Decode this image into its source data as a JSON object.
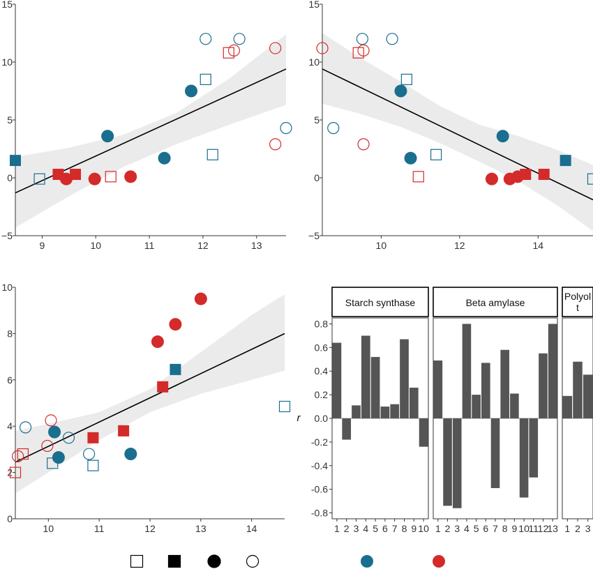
{
  "colors": {
    "blue": "#1a6e8e",
    "red": "#d42a2a",
    "band": "#ebebeb",
    "line": "#000000",
    "bar": "#555555"
  },
  "chart_data": [
    {
      "type": "scatter",
      "panel": "top-left",
      "xlim": [
        8.5,
        13.55
      ],
      "ylim": [
        -5,
        15
      ],
      "xticks": [
        9,
        10,
        11,
        12,
        13
      ],
      "yticks": [
        -5,
        0,
        5,
        10,
        15
      ],
      "fit": {
        "x": [
          8.5,
          13.55
        ],
        "y": [
          -1.3,
          9.4
        ]
      },
      "band": {
        "x": [
          8.5,
          9.5,
          10.5,
          11.5,
          12.5,
          13.55
        ],
        "lower": [
          -4.3,
          -1.6,
          0.9,
          2.9,
          4.6,
          6.3
        ],
        "upper": [
          1.8,
          2.6,
          3.7,
          5.6,
          8.6,
          12.4
        ]
      },
      "points": [
        {
          "x": 8.5,
          "y": 1.5,
          "shape": "square",
          "filled": true,
          "color": "blue"
        },
        {
          "x": 8.95,
          "y": -0.1,
          "shape": "square",
          "filled": false,
          "color": "blue"
        },
        {
          "x": 9.3,
          "y": 0.3,
          "shape": "square",
          "filled": true,
          "color": "red"
        },
        {
          "x": 9.45,
          "y": -0.1,
          "shape": "circle",
          "filled": true,
          "color": "red"
        },
        {
          "x": 9.62,
          "y": 0.3,
          "shape": "square",
          "filled": true,
          "color": "red"
        },
        {
          "x": 9.98,
          "y": -0.1,
          "shape": "circle",
          "filled": true,
          "color": "red"
        },
        {
          "x": 10.22,
          "y": 3.6,
          "shape": "circle",
          "filled": true,
          "color": "blue"
        },
        {
          "x": 10.28,
          "y": 0.1,
          "shape": "square",
          "filled": false,
          "color": "red"
        },
        {
          "x": 10.65,
          "y": 0.1,
          "shape": "circle",
          "filled": true,
          "color": "red"
        },
        {
          "x": 11.28,
          "y": 1.7,
          "shape": "circle",
          "filled": true,
          "color": "blue"
        },
        {
          "x": 11.78,
          "y": 7.5,
          "shape": "circle",
          "filled": true,
          "color": "blue"
        },
        {
          "x": 12.05,
          "y": 8.5,
          "shape": "square",
          "filled": false,
          "color": "blue"
        },
        {
          "x": 12.05,
          "y": 12.0,
          "shape": "circle",
          "filled": false,
          "color": "blue"
        },
        {
          "x": 12.18,
          "y": 2.0,
          "shape": "square",
          "filled": false,
          "color": "blue"
        },
        {
          "x": 12.48,
          "y": 10.8,
          "shape": "square",
          "filled": false,
          "color": "red"
        },
        {
          "x": 12.58,
          "y": 11.0,
          "shape": "circle",
          "filled": false,
          "color": "red"
        },
        {
          "x": 12.68,
          "y": 12.0,
          "shape": "circle",
          "filled": false,
          "color": "blue"
        },
        {
          "x": 13.35,
          "y": 11.2,
          "shape": "circle",
          "filled": false,
          "color": "red"
        },
        {
          "x": 13.35,
          "y": 2.9,
          "shape": "circle",
          "filled": false,
          "color": "red"
        },
        {
          "x": 13.55,
          "y": 4.3,
          "shape": "circle",
          "filled": false,
          "color": "blue"
        }
      ]
    },
    {
      "type": "scatter",
      "panel": "top-right",
      "xlim": [
        8.5,
        15.4
      ],
      "ylim": [
        -5,
        15
      ],
      "xticks": [
        10,
        12,
        14
      ],
      "yticks": [
        -5,
        0,
        5,
        10,
        15
      ],
      "fit": {
        "x": [
          8.5,
          15.4
        ],
        "y": [
          9.4,
          -1.9
        ]
      },
      "band": {
        "x": [
          8.5,
          9.5,
          10.5,
          11.5,
          12.5,
          13.5,
          14.5,
          15.4
        ],
        "lower": [
          6.4,
          5.5,
          4.4,
          3.0,
          1.4,
          -0.3,
          -2.4,
          -4.6
        ],
        "upper": [
          12.5,
          10.3,
          8.3,
          6.2,
          4.6,
          3.6,
          2.4,
          1.1
        ]
      },
      "points": [
        {
          "x": 8.5,
          "y": 11.2,
          "shape": "circle",
          "filled": false,
          "color": "red"
        },
        {
          "x": 8.78,
          "y": 4.3,
          "shape": "circle",
          "filled": false,
          "color": "blue"
        },
        {
          "x": 9.42,
          "y": 10.8,
          "shape": "square",
          "filled": false,
          "color": "red"
        },
        {
          "x": 9.52,
          "y": 12.0,
          "shape": "circle",
          "filled": false,
          "color": "blue"
        },
        {
          "x": 9.55,
          "y": 11.0,
          "shape": "circle",
          "filled": false,
          "color": "red"
        },
        {
          "x": 9.55,
          "y": 2.9,
          "shape": "circle",
          "filled": false,
          "color": "red"
        },
        {
          "x": 10.28,
          "y": 12.0,
          "shape": "circle",
          "filled": false,
          "color": "blue"
        },
        {
          "x": 10.5,
          "y": 7.5,
          "shape": "circle",
          "filled": true,
          "color": "blue"
        },
        {
          "x": 10.65,
          "y": 8.5,
          "shape": "square",
          "filled": false,
          "color": "blue"
        },
        {
          "x": 10.75,
          "y": 1.7,
          "shape": "circle",
          "filled": true,
          "color": "blue"
        },
        {
          "x": 10.95,
          "y": 0.1,
          "shape": "square",
          "filled": false,
          "color": "red"
        },
        {
          "x": 11.4,
          "y": 2.0,
          "shape": "square",
          "filled": false,
          "color": "blue"
        },
        {
          "x": 12.82,
          "y": -0.1,
          "shape": "circle",
          "filled": true,
          "color": "red"
        },
        {
          "x": 13.1,
          "y": 3.6,
          "shape": "circle",
          "filled": true,
          "color": "blue"
        },
        {
          "x": 13.28,
          "y": -0.1,
          "shape": "circle",
          "filled": true,
          "color": "red"
        },
        {
          "x": 13.48,
          "y": 0.1,
          "shape": "circle",
          "filled": true,
          "color": "red"
        },
        {
          "x": 13.68,
          "y": 0.3,
          "shape": "square",
          "filled": true,
          "color": "red"
        },
        {
          "x": 14.15,
          "y": 0.3,
          "shape": "square",
          "filled": true,
          "color": "red"
        },
        {
          "x": 14.7,
          "y": 1.5,
          "shape": "square",
          "filled": true,
          "color": "blue"
        },
        {
          "x": 15.4,
          "y": -0.1,
          "shape": "square",
          "filled": false,
          "color": "blue"
        }
      ]
    },
    {
      "type": "scatter",
      "panel": "bottom-left",
      "xlim": [
        9.35,
        14.65
      ],
      "ylim": [
        0,
        10
      ],
      "xticks": [
        10,
        11,
        12,
        13,
        14
      ],
      "yticks": [
        0,
        2,
        4,
        6,
        8,
        10
      ],
      "fit": {
        "x": [
          9.35,
          14.65
        ],
        "y": [
          2.45,
          8.0
        ]
      },
      "band": {
        "x": [
          9.35,
          10.0,
          11.0,
          12.0,
          13.0,
          14.0,
          14.65
        ],
        "lower": [
          1.1,
          2.0,
          3.4,
          4.6,
          5.4,
          6.0,
          6.4
        ],
        "upper": [
          3.8,
          4.1,
          4.6,
          5.6,
          7.2,
          8.8,
          9.7
        ]
      },
      "points": [
        {
          "x": 9.35,
          "y": 2.0,
          "shape": "square",
          "filled": false,
          "color": "red"
        },
        {
          "x": 9.4,
          "y": 2.7,
          "shape": "circle",
          "filled": false,
          "color": "red"
        },
        {
          "x": 9.5,
          "y": 2.8,
          "shape": "square",
          "filled": false,
          "color": "red"
        },
        {
          "x": 9.55,
          "y": 3.95,
          "shape": "circle",
          "filled": false,
          "color": "blue"
        },
        {
          "x": 9.98,
          "y": 3.15,
          "shape": "circle",
          "filled": false,
          "color": "red"
        },
        {
          "x": 10.05,
          "y": 4.25,
          "shape": "circle",
          "filled": false,
          "color": "red"
        },
        {
          "x": 10.08,
          "y": 2.4,
          "shape": "square",
          "filled": false,
          "color": "blue"
        },
        {
          "x": 10.12,
          "y": 3.75,
          "shape": "circle",
          "filled": true,
          "color": "blue"
        },
        {
          "x": 10.2,
          "y": 2.65,
          "shape": "circle",
          "filled": true,
          "color": "blue"
        },
        {
          "x": 10.4,
          "y": 3.5,
          "shape": "circle",
          "filled": false,
          "color": "blue"
        },
        {
          "x": 10.8,
          "y": 2.8,
          "shape": "circle",
          "filled": false,
          "color": "blue"
        },
        {
          "x": 10.88,
          "y": 2.3,
          "shape": "square",
          "filled": false,
          "color": "blue"
        },
        {
          "x": 10.88,
          "y": 3.5,
          "shape": "square",
          "filled": true,
          "color": "red"
        },
        {
          "x": 11.48,
          "y": 3.8,
          "shape": "square",
          "filled": true,
          "color": "red"
        },
        {
          "x": 11.62,
          "y": 2.8,
          "shape": "circle",
          "filled": true,
          "color": "blue"
        },
        {
          "x": 12.15,
          "y": 7.65,
          "shape": "circle",
          "filled": true,
          "color": "red"
        },
        {
          "x": 12.25,
          "y": 5.7,
          "shape": "square",
          "filled": true,
          "color": "red"
        },
        {
          "x": 12.5,
          "y": 8.4,
          "shape": "circle",
          "filled": true,
          "color": "red"
        },
        {
          "x": 12.5,
          "y": 6.45,
          "shape": "square",
          "filled": true,
          "color": "blue"
        },
        {
          "x": 13.0,
          "y": 9.5,
          "shape": "circle",
          "filled": true,
          "color": "red"
        },
        {
          "x": 14.65,
          "y": 4.85,
          "shape": "square",
          "filled": false,
          "color": "blue"
        }
      ]
    },
    {
      "type": "bar",
      "panel": "bottom-right",
      "ylabel": "r",
      "ylim": [
        -0.85,
        0.85
      ],
      "yticks": [
        "0.8",
        "0.6",
        "0.4",
        "0.2",
        "0.0",
        "-0.2",
        "-0.4",
        "-0.6",
        "-0.8"
      ],
      "facets": [
        {
          "strip": "Starch synthase",
          "categories": [
            "1",
            "2",
            "3",
            "4",
            "5",
            "6",
            "7",
            "8",
            "9",
            "10"
          ],
          "values": [
            0.64,
            -0.18,
            0.11,
            0.7,
            0.52,
            0.1,
            0.12,
            0.67,
            0.26,
            -0.24
          ]
        },
        {
          "strip": "Beta amylase",
          "categories": [
            "1",
            "2",
            "3",
            "4",
            "5",
            "6",
            "7",
            "8",
            "9",
            "10",
            "11",
            "12",
            "13"
          ],
          "values": [
            0.49,
            -0.74,
            -0.76,
            0.8,
            0.2,
            0.47,
            -0.59,
            0.58,
            0.21,
            -0.67,
            -0.5,
            0.55,
            0.8
          ]
        },
        {
          "strip": "Polyol\nt",
          "categories": [
            "1",
            "2",
            "3"
          ],
          "values": [
            0.19,
            0.48,
            0.37
          ]
        }
      ]
    }
  ],
  "legend": {
    "placement": "bottom",
    "shape_keys": [
      {
        "shape": "square",
        "filled": false
      },
      {
        "shape": "square",
        "filled": true
      },
      {
        "shape": "circle",
        "filled": true
      },
      {
        "shape": "circle",
        "filled": false
      }
    ],
    "color_keys": [
      {
        "shape": "circle",
        "filled": true,
        "color": "blue"
      },
      {
        "shape": "circle",
        "filled": true,
        "color": "red"
      }
    ]
  }
}
